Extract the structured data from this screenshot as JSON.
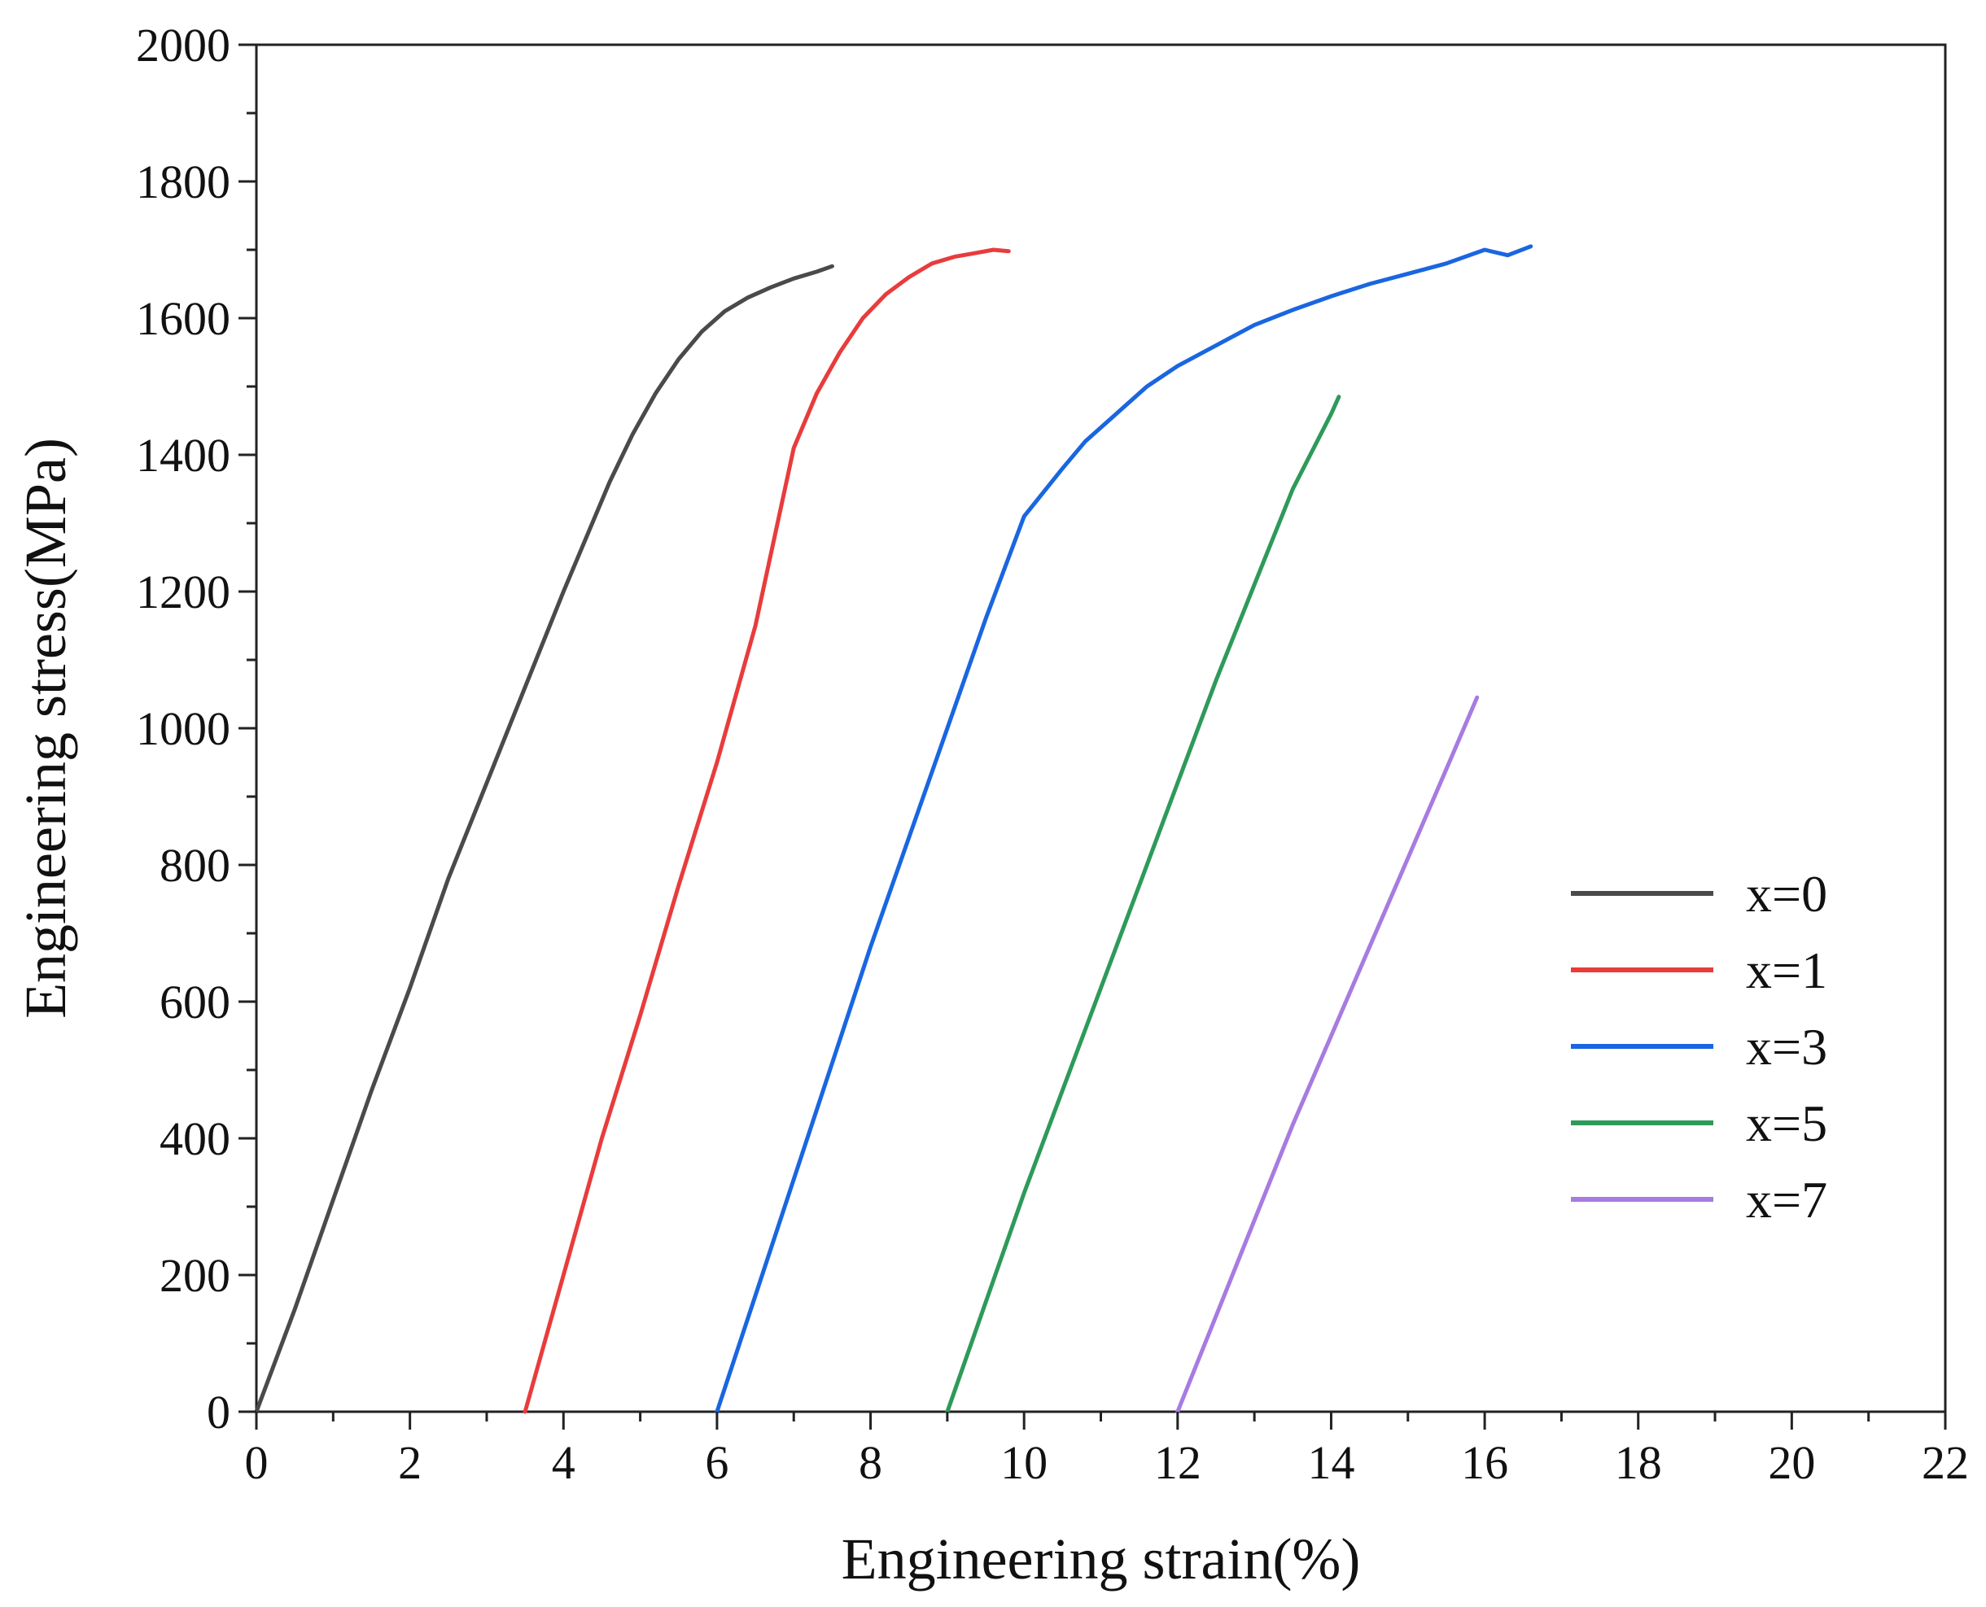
{
  "chart_data": {
    "type": "line",
    "title": "",
    "xlabel": "Engineering strain(%)",
    "ylabel": "Engineering stress(MPa)",
    "xlim": [
      0,
      22
    ],
    "ylim": [
      0,
      2000
    ],
    "xticks": [
      0,
      2,
      4,
      6,
      8,
      10,
      12,
      14,
      16,
      18,
      20,
      22
    ],
    "yticks": [
      0,
      200,
      400,
      600,
      800,
      1000,
      1200,
      1400,
      1600,
      1800,
      2000
    ],
    "grid": false,
    "legend_position": "bottom-right",
    "series": [
      {
        "name": "x=0",
        "color": "#4a4a4a",
        "x": [
          0,
          0.5,
          1.0,
          1.5,
          2.0,
          2.5,
          3.0,
          3.5,
          4.0,
          4.3,
          4.6,
          4.9,
          5.2,
          5.5,
          5.8,
          6.1,
          6.4,
          6.7,
          7.0,
          7.3,
          7.5
        ],
        "y": [
          0,
          150,
          310,
          470,
          620,
          780,
          920,
          1060,
          1200,
          1280,
          1360,
          1430,
          1490,
          1540,
          1580,
          1610,
          1630,
          1645,
          1658,
          1668,
          1676
        ]
      },
      {
        "name": "x=1",
        "color": "#e83c3c",
        "x": [
          3.5,
          4.0,
          4.5,
          5.0,
          5.5,
          6.0,
          6.5,
          7.0,
          7.3,
          7.6,
          7.9,
          8.2,
          8.5,
          8.8,
          9.1,
          9.4,
          9.6,
          9.8
        ],
        "y": [
          0,
          200,
          400,
          580,
          770,
          950,
          1150,
          1410,
          1490,
          1550,
          1600,
          1635,
          1660,
          1680,
          1690,
          1696,
          1700,
          1698
        ]
      },
      {
        "name": "x=3",
        "color": "#1a66e0",
        "x": [
          6.0,
          6.5,
          7.0,
          7.5,
          8.0,
          8.5,
          9.0,
          9.5,
          10.0,
          10.5,
          10.8,
          11.2,
          11.6,
          12.0,
          12.5,
          13.0,
          13.5,
          14.0,
          14.5,
          15.0,
          15.5,
          16.0,
          16.3,
          16.6
        ],
        "y": [
          0,
          170,
          340,
          510,
          680,
          840,
          1000,
          1160,
          1310,
          1380,
          1420,
          1460,
          1500,
          1530,
          1560,
          1590,
          1612,
          1632,
          1650,
          1665,
          1680,
          1700,
          1692,
          1705
        ]
      },
      {
        "name": "x=5",
        "color": "#2e9a5a",
        "x": [
          9.0,
          9.5,
          10.0,
          10.5,
          11.0,
          11.5,
          12.0,
          12.5,
          13.0,
          13.5,
          14.0,
          14.1
        ],
        "y": [
          0,
          160,
          320,
          470,
          620,
          770,
          920,
          1070,
          1210,
          1350,
          1460,
          1485
        ]
      },
      {
        "name": "x=7",
        "color": "#a77be0",
        "x": [
          12.0,
          12.5,
          13.0,
          13.5,
          14.0,
          14.5,
          15.0,
          15.5,
          15.9
        ],
        "y": [
          0,
          140,
          280,
          420,
          550,
          680,
          810,
          940,
          1045
        ]
      }
    ]
  }
}
